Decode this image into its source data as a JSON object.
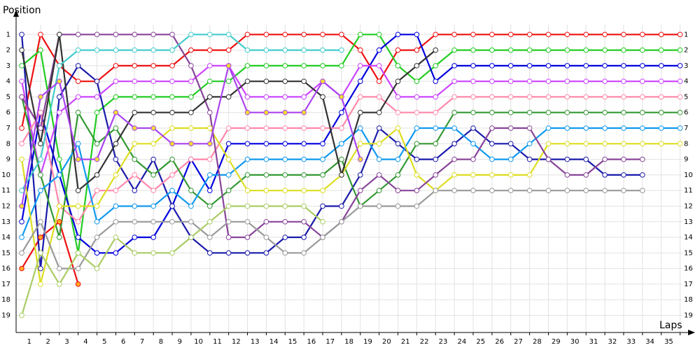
{
  "chart_data": {
    "type": "line",
    "y_title": "Position",
    "x_title": "Laps",
    "x": [
      0,
      1,
      2,
      3,
      4,
      5,
      6,
      7,
      8,
      9,
      10,
      11,
      12,
      13,
      14,
      15,
      16,
      17,
      18,
      19,
      20,
      21,
      22,
      23,
      24,
      25,
      26,
      27,
      28,
      29,
      30,
      31,
      32,
      33,
      34,
      35
    ],
    "xlim": [
      -0.3,
      35.5
    ],
    "ylim": [
      0,
      20.1
    ],
    "y_inverted": true,
    "grid": true,
    "xticks": [
      1,
      2,
      3,
      4,
      5,
      6,
      7,
      8,
      9,
      10,
      11,
      12,
      13,
      14,
      15,
      16,
      17,
      18,
      19,
      20,
      21,
      22,
      23,
      24,
      25,
      26,
      27,
      28,
      29,
      30,
      31,
      32,
      33,
      34,
      35
    ],
    "yticks": [
      1,
      2,
      3,
      4,
      5,
      6,
      7,
      8,
      9,
      10,
      11,
      12,
      13,
      14,
      15,
      16,
      17,
      18,
      19
    ],
    "series": [
      {
        "color": "#ee1111",
        "values": [
          7,
          1,
          3,
          4,
          4,
          3,
          3,
          3,
          3,
          2,
          2,
          2,
          1,
          1,
          1,
          1,
          1,
          1,
          2,
          4,
          2,
          2,
          1,
          1,
          1,
          1,
          1,
          1,
          1,
          1,
          1,
          1,
          1,
          1,
          1,
          1
        ]
      },
      {
        "color": "#ee1111",
        "marker_fill": "#ffaa22",
        "values": [
          16,
          14,
          13,
          17,
          null,
          null,
          null,
          null,
          null,
          null,
          null,
          null,
          null,
          null,
          null,
          null,
          null,
          null,
          null,
          null,
          null,
          null,
          null,
          null,
          null,
          null,
          null,
          null,
          null,
          null,
          null,
          null,
          null,
          null,
          null,
          null
        ]
      },
      {
        "color": "#22cc22",
        "values": [
          3,
          2,
          9,
          15,
          6,
          5,
          5,
          5,
          5,
          5,
          4,
          4,
          3,
          3,
          3,
          3,
          3,
          3,
          1,
          1,
          3,
          4,
          3,
          2,
          2,
          2,
          2,
          2,
          2,
          2,
          2,
          2,
          2,
          2,
          2,
          2
        ]
      },
      {
        "color": "#0000dd",
        "values": [
          13,
          6,
          10,
          14,
          15,
          15,
          14,
          14,
          12,
          9,
          11,
          8,
          8,
          8,
          8,
          8,
          8,
          6,
          4,
          2,
          1,
          1,
          4,
          3,
          3,
          3,
          3,
          3,
          3,
          3,
          3,
          3,
          3,
          3,
          3,
          3
        ]
      },
      {
        "color": "#1a1aaa",
        "values": [
          1,
          16,
          5,
          3,
          4,
          9,
          11,
          9,
          12,
          14,
          15,
          15,
          15,
          15,
          14,
          14,
          12,
          12,
          10,
          7,
          8,
          9,
          9,
          8,
          7,
          8,
          8,
          9,
          9,
          9,
          9,
          10,
          10,
          10,
          null,
          null
        ]
      },
      {
        "color": "#cc44ff",
        "values": [
          4,
          10,
          6,
          5,
          5,
          4,
          4,
          4,
          4,
          4,
          3,
          3,
          5,
          5,
          5,
          5,
          4,
          5,
          3,
          3,
          5,
          5,
          5,
          4,
          4,
          4,
          4,
          4,
          4,
          4,
          4,
          4,
          4,
          4,
          4,
          4
        ]
      },
      {
        "color": "#ff88aa",
        "values": [
          8,
          6,
          12,
          13,
          11,
          11,
          10,
          11,
          10,
          9,
          9,
          7,
          7,
          7,
          7,
          7,
          7,
          7,
          5,
          5,
          6,
          6,
          6,
          5,
          5,
          5,
          5,
          5,
          5,
          5,
          5,
          5,
          5,
          5,
          5,
          5
        ]
      },
      {
        "color": "#339933",
        "values": [
          5,
          10,
          14,
          6,
          8,
          7,
          9,
          10,
          9,
          11,
          12,
          11,
          10,
          10,
          10,
          10,
          10,
          9,
          12,
          11,
          10,
          8,
          8,
          6,
          6,
          6,
          6,
          6,
          6,
          6,
          6,
          6,
          6,
          6,
          6,
          6
        ]
      },
      {
        "color": "#1199ee",
        "values": [
          14,
          11,
          10,
          8,
          13,
          12,
          12,
          12,
          11,
          12,
          10,
          10,
          9,
          9,
          9,
          9,
          9,
          8,
          7,
          9,
          9,
          7,
          7,
          7,
          8,
          9,
          9,
          8,
          7,
          7,
          7,
          7,
          7,
          7,
          7,
          7
        ]
      },
      {
        "color": "#dddd22",
        "values": [
          9,
          17,
          12,
          12,
          12,
          10,
          8,
          8,
          7,
          7,
          7,
          9,
          11,
          11,
          11,
          11,
          11,
          10,
          8,
          8,
          7,
          10,
          11,
          10,
          10,
          10,
          10,
          10,
          8,
          8,
          8,
          8,
          8,
          8,
          8,
          8
        ]
      },
      {
        "color": "#884499",
        "values": [
          5,
          7,
          1,
          1,
          1,
          1,
          1,
          1,
          1,
          3,
          6,
          14,
          14,
          13,
          13,
          13,
          14,
          13,
          11,
          10,
          11,
          11,
          10,
          9,
          9,
          7,
          7,
          7,
          9,
          10,
          10,
          9,
          9,
          9,
          null,
          null
        ]
      },
      {
        "color": "#999999",
        "values": [
          15,
          13,
          16,
          16,
          14,
          13,
          13,
          13,
          13,
          13,
          14,
          13,
          13,
          14,
          15,
          15,
          14,
          13,
          12,
          12,
          12,
          12,
          11,
          11,
          11,
          11,
          11,
          11,
          11,
          11,
          11,
          11,
          11,
          11,
          null,
          null
        ]
      },
      {
        "color": "#333333",
        "values": [
          2,
          8,
          1,
          11,
          10,
          8,
          6,
          6,
          6,
          6,
          5,
          5,
          4,
          4,
          4,
          4,
          5,
          10,
          6,
          6,
          4,
          3,
          2,
          null,
          null,
          null,
          null,
          null,
          null,
          null,
          null,
          null,
          null,
          null,
          null,
          null
        ]
      },
      {
        "color": "#44cccc",
        "values": [
          11,
          9,
          3,
          2,
          2,
          2,
          2,
          2,
          2,
          1,
          1,
          1,
          2,
          2,
          2,
          2,
          2,
          2,
          null,
          null,
          null,
          null,
          null,
          null,
          null,
          null,
          null,
          null,
          null,
          null,
          null,
          null,
          null,
          null,
          null,
          null
        ]
      },
      {
        "color": "#aacc66",
        "values": [
          19,
          15,
          17,
          15,
          16,
          14,
          15,
          15,
          15,
          14,
          13,
          12,
          12,
          12,
          12,
          12,
          13,
          null,
          null,
          null,
          null,
          null,
          null,
          null,
          null,
          null,
          null,
          null,
          null,
          null,
          null,
          null,
          null,
          null,
          null,
          null
        ]
      },
      {
        "color": "#aa44ee",
        "marker_fill": "#eedd33",
        "values": [
          12,
          5,
          4,
          9,
          9,
          6,
          7,
          7,
          8,
          8,
          8,
          3,
          6,
          6,
          6,
          6,
          4,
          5,
          9,
          null,
          null,
          null,
          null,
          null,
          null,
          null,
          null,
          null,
          null,
          null,
          null,
          null,
          null,
          null,
          null,
          null
        ]
      }
    ]
  }
}
